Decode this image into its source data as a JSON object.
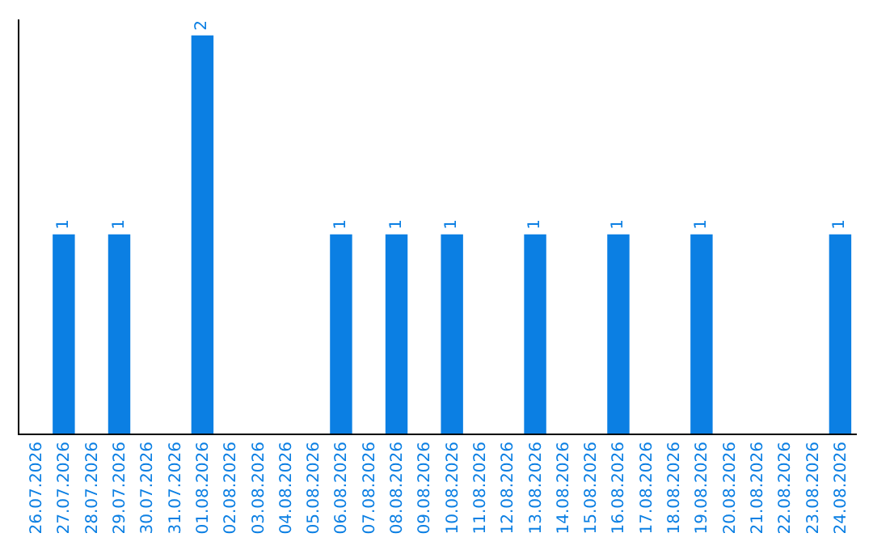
{
  "chart_data": {
    "type": "bar",
    "categories": [
      "26.07.2026",
      "27.07.2026",
      "28.07.2026",
      "29.07.2026",
      "30.07.2026",
      "31.07.2026",
      "01.08.2026",
      "02.08.2026",
      "03.08.2026",
      "04.08.2026",
      "05.08.2026",
      "06.08.2026",
      "07.08.2026",
      "08.08.2026",
      "09.08.2026",
      "10.08.2026",
      "11.08.2026",
      "12.08.2026",
      "13.08.2026",
      "14.08.2026",
      "15.08.2026",
      "16.08.2026",
      "17.08.2026",
      "18.08.2026",
      "19.08.2026",
      "20.08.2026",
      "21.08.2026",
      "22.08.2026",
      "23.08.2026",
      "24.08.2026"
    ],
    "values": [
      0,
      1,
      0,
      1,
      0,
      0,
      2,
      0,
      0,
      0,
      0,
      1,
      0,
      1,
      0,
      1,
      0,
      0,
      1,
      0,
      0,
      1,
      0,
      0,
      1,
      0,
      0,
      0,
      0,
      1
    ],
    "value_labels": [
      null,
      "1",
      null,
      "1",
      null,
      null,
      "2",
      null,
      null,
      null,
      null,
      "1",
      null,
      "1",
      null,
      "1",
      null,
      null,
      "1",
      null,
      null,
      "1",
      null,
      null,
      "1",
      null,
      null,
      null,
      null,
      "1"
    ],
    "color": "#0b7fe3",
    "tick_labels": "x",
    "legend": false
  }
}
